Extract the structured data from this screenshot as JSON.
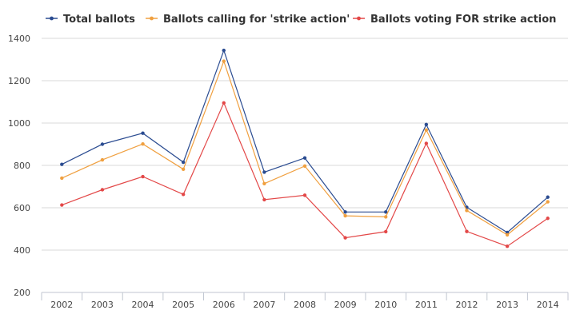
{
  "chart_data": {
    "type": "line",
    "title": "",
    "xlabel": "",
    "ylabel": "",
    "categories": [
      "2002",
      "2003",
      "2004",
      "2005",
      "2006",
      "2007",
      "2008",
      "2009",
      "2010",
      "2011",
      "2012",
      "2013",
      "2014"
    ],
    "ylim": [
      200,
      1400
    ],
    "yticks": [
      200,
      400,
      600,
      800,
      1000,
      1200,
      1400
    ],
    "grid": true,
    "legend_position": "top-left",
    "series": [
      {
        "name": "Total ballots",
        "color": "#2b4c91",
        "values": [
          805,
          900,
          952,
          815,
          1343,
          768,
          835,
          580,
          580,
          993,
          602,
          483,
          650
        ]
      },
      {
        "name": "Ballots calling for 'strike action'",
        "color": "#f0a040",
        "values": [
          740,
          826,
          901,
          782,
          1292,
          714,
          797,
          562,
          557,
          967,
          587,
          472,
          628
        ]
      },
      {
        "name": "Ballots voting FOR strike action",
        "color": "#e34848",
        "values": [
          613,
          685,
          747,
          663,
          1095,
          638,
          659,
          458,
          487,
          904,
          488,
          418,
          550
        ]
      }
    ]
  }
}
